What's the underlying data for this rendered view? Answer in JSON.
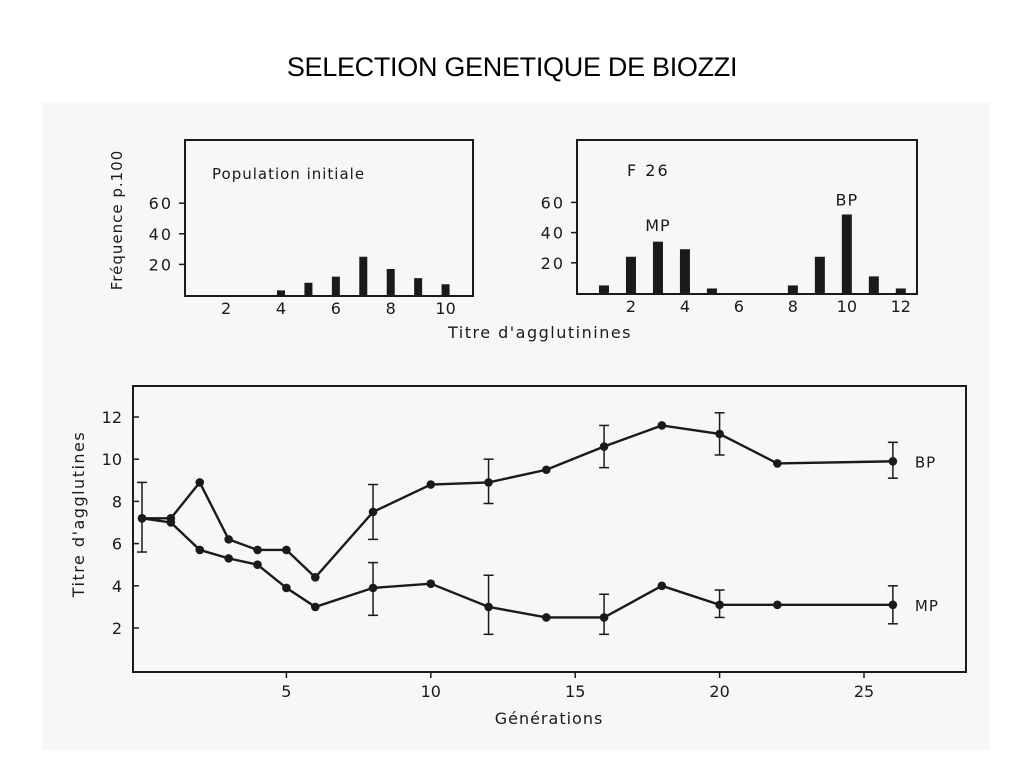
{
  "slide_title": "SELECTION GENETIQUE DE BIOZZI",
  "colors": {
    "ink": "#1a1a1a",
    "scan_bg": "#f7f7f5"
  },
  "chart_data": [
    {
      "type": "bar",
      "panel_label": "Population initiale",
      "ylabel": "Fréquence p.100",
      "xlabel": "Titre d'agglutinines",
      "x_ticks": [
        2,
        4,
        6,
        8,
        10
      ],
      "y_ticks": [
        20,
        40,
        60
      ],
      "xlim": [
        0.5,
        11
      ],
      "ylim": [
        0,
        100
      ],
      "categories": [
        4,
        5,
        6,
        7,
        8,
        9,
        10
      ],
      "values": [
        3,
        8,
        12,
        25,
        17,
        11,
        7
      ]
    },
    {
      "type": "bar",
      "panel_label": "F 26",
      "xlabel": "Titre d'agglutinines",
      "x_ticks": [
        2,
        4,
        6,
        8,
        10,
        12
      ],
      "y_ticks": [
        20,
        40,
        60
      ],
      "xlim": [
        0,
        12.6
      ],
      "ylim": [
        0,
        100
      ],
      "categories": [
        1,
        2,
        3,
        4,
        5,
        8,
        9,
        10,
        11,
        12
      ],
      "values": [
        5,
        24,
        34,
        29,
        3,
        5,
        24,
        52,
        11,
        3
      ],
      "annotations": [
        {
          "text": "MP",
          "x": 3,
          "y": 45
        },
        {
          "text": "BP",
          "x": 10,
          "y": 62
        }
      ]
    },
    {
      "type": "line",
      "xlabel": "Générations",
      "ylabel": "Titre d'agglutines",
      "x_ticks": [
        5,
        10,
        15,
        20,
        25
      ],
      "y_ticks": [
        2,
        4,
        6,
        8,
        10,
        12
      ],
      "xlim": [
        0,
        28.5
      ],
      "ylim": [
        0,
        13.5
      ],
      "series": [
        {
          "name": "BP",
          "x": [
            0,
            1,
            2,
            3,
            4,
            5,
            6,
            8,
            10,
            12,
            14,
            16,
            18,
            20,
            22,
            26
          ],
          "y": [
            7.2,
            7.2,
            8.9,
            6.2,
            5.7,
            5.7,
            4.4,
            7.5,
            8.8,
            8.9,
            9.5,
            10.6,
            11.6,
            11.2,
            9.8,
            9.9
          ],
          "error_bars": [
            {
              "x": 0,
              "low": 5.6,
              "high": 8.9
            },
            {
              "x": 8,
              "low": 6.2,
              "high": 8.8
            },
            {
              "x": 12,
              "low": 7.9,
              "high": 10.0
            },
            {
              "x": 16,
              "low": 9.6,
              "high": 11.6
            },
            {
              "x": 20,
              "low": 10.2,
              "high": 12.2
            },
            {
              "x": 26,
              "low": 9.1,
              "high": 10.8
            }
          ]
        },
        {
          "name": "MP",
          "x": [
            0,
            1,
            2,
            3,
            4,
            5,
            6,
            8,
            10,
            12,
            14,
            16,
            18,
            20,
            22,
            26
          ],
          "y": [
            7.2,
            7.0,
            5.7,
            5.3,
            5.0,
            3.9,
            3.0,
            3.9,
            4.1,
            3.0,
            2.5,
            2.5,
            4.0,
            3.1,
            3.1,
            3.1
          ],
          "error_bars": [
            {
              "x": 8,
              "low": 2.6,
              "high": 5.1
            },
            {
              "x": 12,
              "low": 1.7,
              "high": 4.5
            },
            {
              "x": 16,
              "low": 1.7,
              "high": 3.6
            },
            {
              "x": 20,
              "low": 2.5,
              "high": 3.8
            },
            {
              "x": 26,
              "low": 2.2,
              "high": 4.0
            }
          ]
        }
      ]
    }
  ]
}
